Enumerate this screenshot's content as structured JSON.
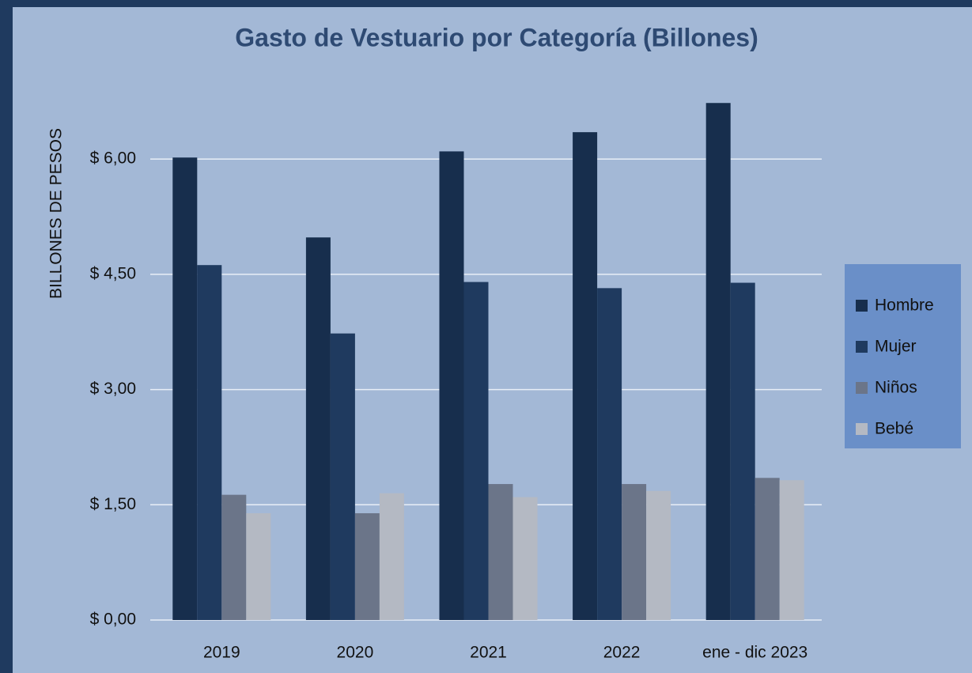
{
  "chart_data": {
    "type": "bar",
    "title": "Gasto de Vestuario por Categoría (Billones)",
    "y_label": "BILLONES DE PESOS",
    "categories": [
      "2019",
      "2020",
      "2021",
      "2022",
      "ene - dic 2023"
    ],
    "series": [
      {
        "name": "Hombre",
        "color": "#172e4d",
        "values": [
          6.02,
          4.98,
          6.1,
          6.35,
          6.73
        ]
      },
      {
        "name": "Mujer",
        "color": "#1f3a5f",
        "values": [
          4.62,
          3.73,
          4.4,
          4.32,
          4.39
        ]
      },
      {
        "name": "Niños",
        "color": "#6b7589",
        "values": [
          1.63,
          1.39,
          1.77,
          1.77,
          1.85
        ]
      },
      {
        "name": "Bebé",
        "color": "#b4b9c3",
        "values": [
          1.39,
          1.65,
          1.6,
          1.68,
          1.82
        ]
      }
    ],
    "ylim": [
      0,
      7.0
    ],
    "yticks": [
      {
        "value": 0,
        "label": "$ 0,00"
      },
      {
        "value": 1.5,
        "label": "$ 1,50"
      },
      {
        "value": 3,
        "label": "$ 3,00"
      },
      {
        "value": 4.5,
        "label": "$ 4,50"
      },
      {
        "value": 6,
        "label": "$ 6,00"
      }
    ],
    "grid": true,
    "legend": "right"
  }
}
